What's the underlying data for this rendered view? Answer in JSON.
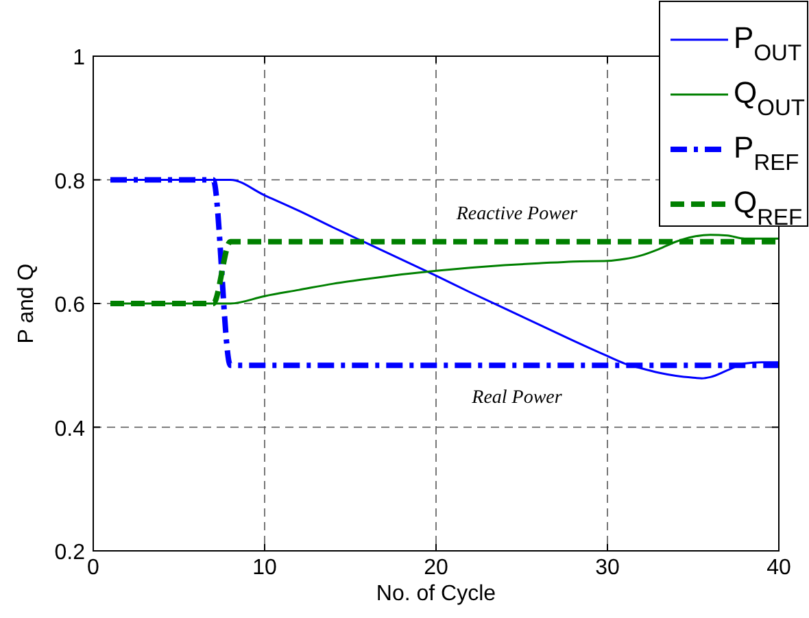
{
  "chart_data": {
    "type": "line",
    "xlabel": "No. of Cycle",
    "ylabel": "P and Q",
    "xlim": [
      0,
      40
    ],
    "ylim": [
      0.2,
      1
    ],
    "xticks": [
      0,
      10,
      20,
      30,
      40
    ],
    "yticks": [
      0.2,
      0.4,
      0.6,
      0.8,
      1
    ],
    "grid": true,
    "legend": "top right",
    "series": [
      {
        "name": "P$_{OUT}$",
        "color": "#0000ff",
        "line_style": "solid",
        "x": [
          1,
          8,
          10,
          12,
          14,
          16,
          18,
          20,
          22,
          24,
          26,
          28,
          30,
          31,
          32,
          33,
          34,
          35,
          35.5,
          36,
          37,
          38,
          39,
          40
        ],
        "values": [
          0.8,
          0.8,
          0.775,
          0.75,
          0.723,
          0.697,
          0.671,
          0.645,
          0.618,
          0.592,
          0.566,
          0.54,
          0.515,
          0.503,
          0.495,
          0.488,
          0.483,
          0.48,
          0.479,
          0.481,
          0.492,
          0.503,
          0.505,
          0.505
        ]
      },
      {
        "name": "Q$_{OUT}$",
        "color": "#008000",
        "line_style": "solid",
        "x": [
          1,
          8,
          10,
          12,
          14,
          16,
          18,
          20,
          22,
          24,
          26,
          28,
          30,
          31,
          32,
          33,
          34,
          35,
          36,
          37,
          38,
          39,
          40
        ],
        "values": [
          0.6,
          0.6,
          0.612,
          0.622,
          0.632,
          0.64,
          0.647,
          0.653,
          0.658,
          0.662,
          0.665,
          0.668,
          0.669,
          0.672,
          0.678,
          0.688,
          0.7,
          0.708,
          0.711,
          0.71,
          0.705,
          0.705,
          0.705
        ]
      },
      {
        "name": "P$_{REF}$",
        "color": "#0000ff",
        "line_style": "dashdot",
        "x": [
          1,
          7,
          8,
          40
        ],
        "values": [
          0.8,
          0.8,
          0.5,
          0.5
        ]
      },
      {
        "name": "Q$_{REF}$",
        "color": "#008000",
        "line_style": "dashed",
        "x": [
          1,
          7,
          8,
          40
        ],
        "values": [
          0.6,
          0.6,
          0.7,
          0.7
        ]
      }
    ],
    "annotations": [
      "Reactive Power",
      "Real Power"
    ]
  }
}
